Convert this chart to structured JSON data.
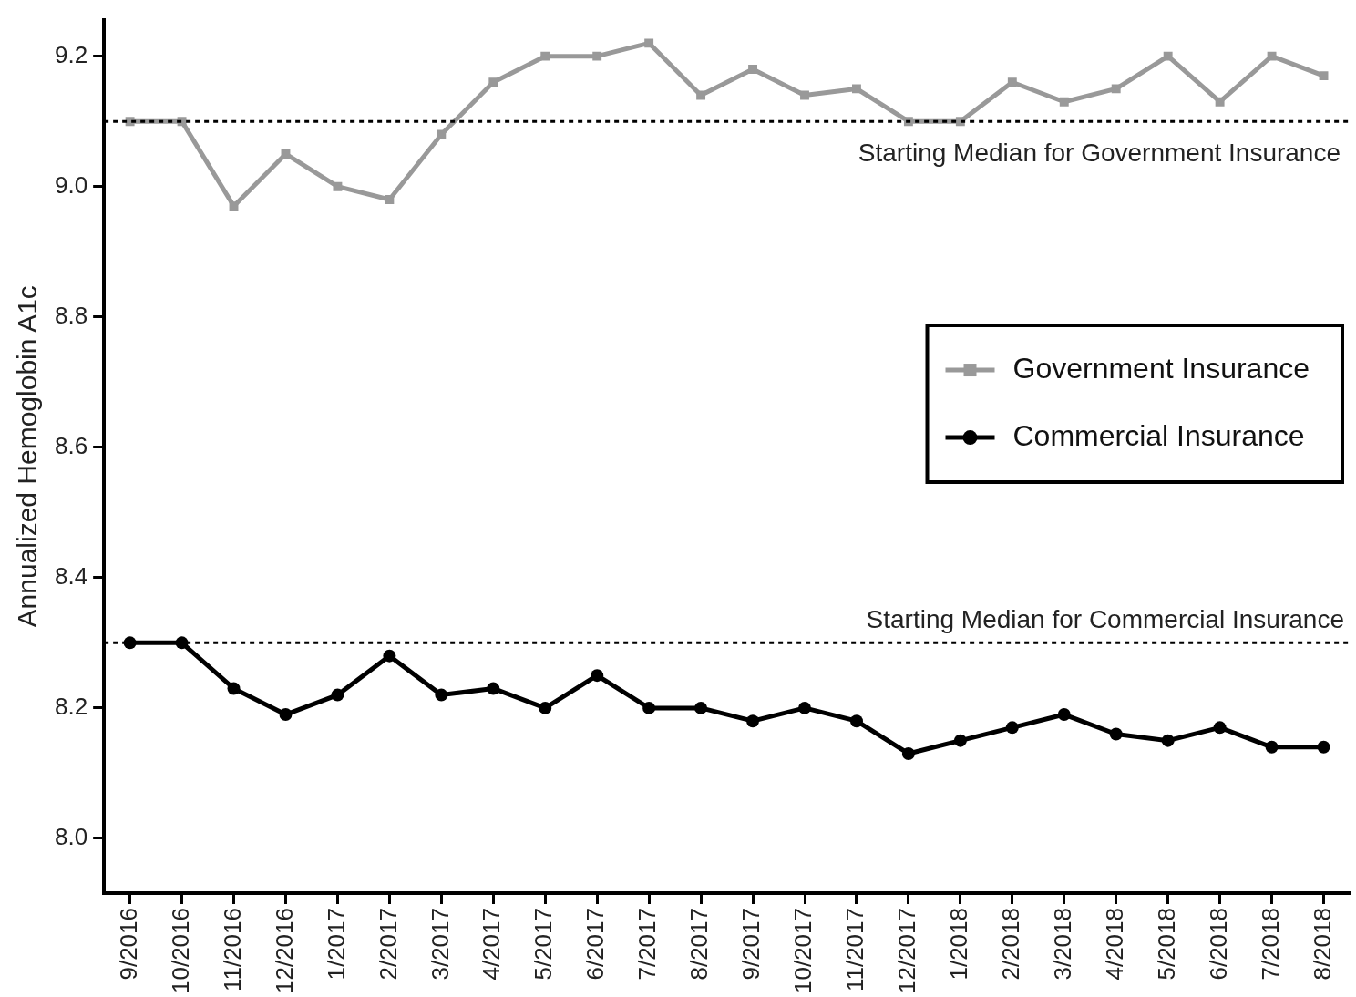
{
  "chart_data": {
    "type": "line",
    "ylabel": "Annualized Hemoglobin A1c",
    "categories": [
      "9/2016",
      "10/2016",
      "11/2016",
      "12/2016",
      "1/2017",
      "2/2017",
      "3/2017",
      "4/2017",
      "5/2017",
      "6/2017",
      "7/2017",
      "8/2017",
      "9/2017",
      "10/2017",
      "11/2017",
      "12/2017",
      "1/2018",
      "2/2018",
      "3/2018",
      "4/2018",
      "5/2018",
      "6/2018",
      "7/2018",
      "8/2018"
    ],
    "series": [
      {
        "name": "Government Insurance",
        "color": "#999999",
        "marker": "square",
        "values": [
          9.1,
          9.1,
          8.97,
          9.05,
          9.0,
          8.98,
          9.08,
          9.16,
          9.2,
          9.2,
          9.22,
          9.14,
          9.18,
          9.14,
          9.15,
          9.1,
          9.1,
          9.16,
          9.13,
          9.15,
          9.2,
          9.13,
          9.2,
          9.17
        ]
      },
      {
        "name": "Commercial Insurance",
        "color": "#000000",
        "marker": "circle",
        "values": [
          8.3,
          8.3,
          8.23,
          8.19,
          8.22,
          8.28,
          8.22,
          8.23,
          8.2,
          8.25,
          8.2,
          8.2,
          8.18,
          8.2,
          8.18,
          8.13,
          8.15,
          8.17,
          8.19,
          8.16,
          8.15,
          8.17,
          8.14,
          8.14
        ]
      }
    ],
    "ylim": [
      7.916,
      9.256
    ],
    "yticks": [
      {
        "value": 8,
        "label": "8.0"
      },
      8.2,
      8.4,
      8.6,
      8.8,
      {
        "value": 9,
        "label": "9.0"
      },
      9.2
    ],
    "ref_lines": [
      {
        "axis": "y",
        "value": 9.1,
        "label": "Starting Median for Government Insurance",
        "color": "#000000",
        "line_style": "dotted"
      },
      {
        "axis": "y",
        "value": 8.3,
        "label": "Starting Median for Commercial Insurance",
        "color": "#000000",
        "line_style": "dotted"
      }
    ],
    "grid": false,
    "legend": "right",
    "line_style": "solid"
  }
}
